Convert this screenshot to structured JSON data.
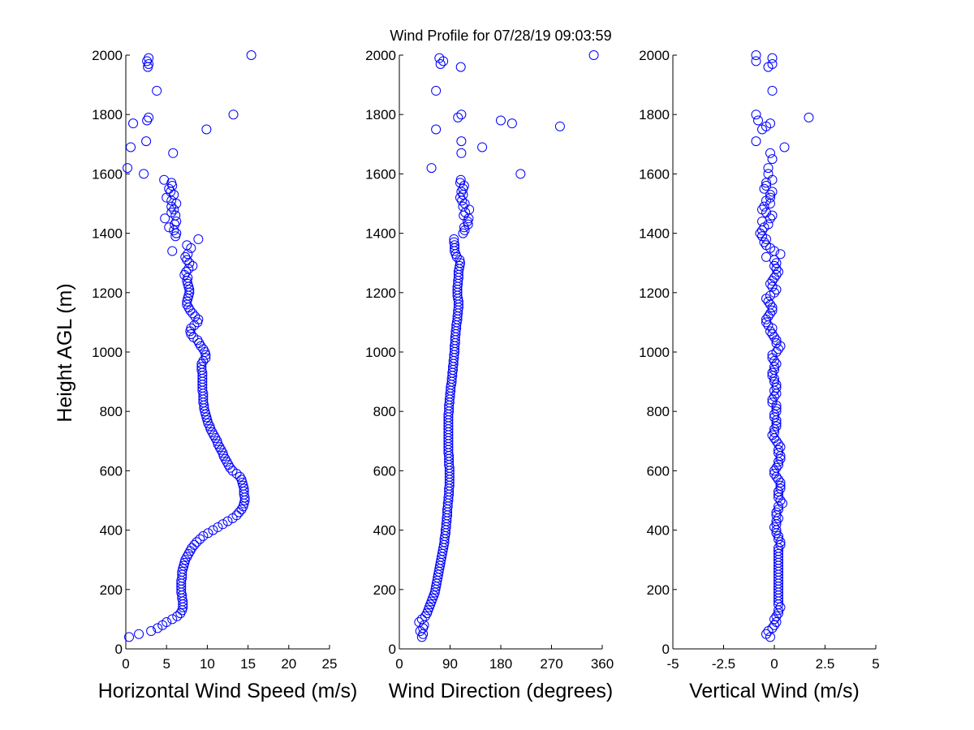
{
  "chart_data": {
    "title": "Wind Profile for  07/28/19 09:03:59",
    "ylabel": "Height AGL (m)",
    "ylim": [
      0,
      2000
    ],
    "yticks": [
      0,
      200,
      400,
      600,
      800,
      1000,
      1200,
      1400,
      1600,
      1800,
      2000
    ],
    "panels": [
      {
        "type": "scatter",
        "xlabel": "Horizontal Wind Speed (m/s)",
        "xlim": [
          0,
          25
        ],
        "xticks": [
          "0",
          "5",
          "10",
          "15",
          "20",
          "25"
        ],
        "xtick_values": [
          0,
          5,
          10,
          15,
          20,
          25
        ],
        "y": [
          40,
          50,
          60,
          70,
          80,
          90,
          100,
          110,
          120,
          130,
          140,
          150,
          160,
          170,
          180,
          190,
          200,
          210,
          220,
          230,
          240,
          250,
          260,
          270,
          280,
          290,
          300,
          310,
          320,
          330,
          340,
          350,
          360,
          370,
          380,
          390,
          400,
          410,
          420,
          430,
          440,
          450,
          460,
          470,
          480,
          490,
          500,
          510,
          520,
          530,
          540,
          550,
          560,
          570,
          580,
          590,
          600,
          610,
          620,
          630,
          640,
          650,
          660,
          670,
          680,
          690,
          700,
          710,
          720,
          730,
          740,
          750,
          760,
          770,
          780,
          790,
          800,
          810,
          820,
          830,
          840,
          850,
          860,
          870,
          880,
          890,
          900,
          910,
          920,
          930,
          940,
          950,
          960,
          970,
          980,
          990,
          1000,
          1010,
          1020,
          1030,
          1040,
          1050,
          1060,
          1070,
          1080,
          1090,
          1100,
          1110,
          1120,
          1130,
          1140,
          1150,
          1160,
          1170,
          1180,
          1190,
          1200,
          1210,
          1220,
          1230,
          1240,
          1250,
          1260,
          1270,
          1280,
          1290,
          1300,
          1310,
          1320,
          1330,
          1340,
          1350,
          1360,
          1380,
          1390,
          1400,
          1410,
          1420,
          1430,
          1440,
          1450,
          1460,
          1470,
          1480,
          1490,
          1500,
          1510,
          1520,
          1530,
          1540,
          1550,
          1560,
          1570,
          1580,
          1600,
          1620,
          1670,
          1690,
          1710,
          1750,
          1770,
          1780,
          1790,
          1800,
          1880,
          1960,
          1970,
          1980,
          1990,
          2000
        ],
        "x": [
          0.4,
          1.6,
          3.1,
          3.9,
          4.5,
          5.0,
          5.7,
          6.3,
          6.7,
          6.9,
          7.0,
          7.0,
          7.0,
          6.9,
          6.9,
          6.8,
          6.8,
          6.8,
          6.8,
          6.8,
          6.9,
          6.9,
          6.9,
          7.0,
          7.1,
          7.2,
          7.3,
          7.5,
          7.7,
          7.9,
          8.1,
          8.4,
          8.7,
          9.1,
          9.5,
          10.1,
          10.7,
          11.3,
          11.9,
          12.5,
          13.1,
          13.6,
          13.9,
          14.2,
          14.4,
          14.5,
          14.6,
          14.6,
          14.5,
          14.5,
          14.5,
          14.4,
          14.3,
          14.2,
          14.0,
          13.6,
          13.1,
          12.8,
          12.6,
          12.4,
          12.2,
          12.0,
          11.9,
          11.7,
          11.5,
          11.3,
          11.2,
          11.0,
          10.8,
          10.6,
          10.4,
          10.3,
          10.1,
          10.0,
          9.9,
          9.8,
          9.7,
          9.6,
          9.6,
          9.5,
          9.5,
          9.5,
          9.5,
          9.4,
          9.4,
          9.4,
          9.4,
          9.4,
          9.4,
          9.4,
          9.3,
          9.3,
          9.3,
          9.5,
          9.8,
          9.8,
          9.7,
          9.5,
          9.2,
          9.0,
          8.8,
          8.3,
          8.0,
          7.9,
          8.0,
          8.4,
          8.8,
          8.9,
          8.5,
          8.2,
          7.9,
          7.7,
          7.5,
          7.5,
          7.6,
          7.7,
          7.8,
          7.8,
          7.7,
          7.6,
          7.5,
          7.6,
          7.2,
          7.4,
          7.7,
          8.2,
          7.8,
          7.5,
          7.3,
          7.6,
          5.7,
          8.0,
          7.5,
          8.9,
          6.1,
          6.2,
          5.9,
          5.3,
          6.0,
          6.2,
          4.8,
          6.1,
          5.6,
          5.9,
          5.6,
          6.2,
          5.6,
          5.0,
          5.9,
          5.5,
          5.3,
          5.7,
          5.6,
          4.7,
          2.2,
          0.2,
          5.8,
          0.6,
          2.5,
          9.9,
          0.9,
          2.6,
          2.8,
          13.2,
          3.8,
          2.7,
          2.8,
          2.6,
          2.8,
          15.4
        ]
      },
      {
        "type": "scatter",
        "xlabel": "Wind Direction (degrees)",
        "xlim": [
          0,
          360
        ],
        "xticks": [
          "0",
          "90",
          "180",
          "270",
          "360"
        ],
        "xtick_values": [
          0,
          90,
          180,
          270,
          360
        ],
        "y": [
          40,
          50,
          60,
          70,
          80,
          90,
          100,
          110,
          120,
          130,
          140,
          150,
          160,
          170,
          180,
          190,
          200,
          210,
          220,
          230,
          240,
          250,
          260,
          270,
          280,
          290,
          300,
          310,
          320,
          330,
          340,
          350,
          360,
          370,
          380,
          390,
          400,
          410,
          420,
          430,
          440,
          450,
          460,
          470,
          480,
          490,
          500,
          510,
          520,
          530,
          540,
          550,
          560,
          570,
          580,
          590,
          600,
          610,
          620,
          630,
          640,
          650,
          660,
          670,
          680,
          690,
          700,
          710,
          720,
          730,
          740,
          750,
          760,
          770,
          780,
          790,
          800,
          810,
          820,
          830,
          840,
          850,
          860,
          870,
          880,
          890,
          900,
          910,
          920,
          930,
          940,
          950,
          960,
          970,
          980,
          990,
          1000,
          1010,
          1020,
          1030,
          1040,
          1050,
          1060,
          1070,
          1080,
          1090,
          1100,
          1110,
          1120,
          1130,
          1140,
          1150,
          1160,
          1170,
          1180,
          1190,
          1200,
          1210,
          1220,
          1230,
          1240,
          1250,
          1260,
          1270,
          1280,
          1290,
          1300,
          1310,
          1320,
          1330,
          1340,
          1350,
          1360,
          1370,
          1380,
          1400,
          1410,
          1420,
          1430,
          1440,
          1450,
          1460,
          1470,
          1480,
          1490,
          1500,
          1510,
          1520,
          1530,
          1540,
          1550,
          1560,
          1570,
          1580,
          1600,
          1620,
          1670,
          1690,
          1710,
          1750,
          1760,
          1770,
          1780,
          1790,
          1800,
          1880,
          1960,
          1970,
          1980,
          1990,
          2000
        ],
        "x": [
          40,
          42,
          37,
          42,
          44,
          35,
          40,
          46,
          49,
          51,
          53,
          55,
          57,
          59,
          61,
          63,
          64,
          65,
          66,
          67,
          68,
          69,
          70,
          71,
          72,
          73,
          74,
          75,
          76,
          77,
          78,
          79,
          80,
          80,
          81,
          82,
          82,
          83,
          83,
          84,
          84,
          85,
          85,
          85,
          86,
          86,
          87,
          87,
          88,
          88,
          88,
          89,
          89,
          89,
          89,
          89,
          89,
          89,
          88,
          88,
          88,
          88,
          87,
          87,
          87,
          87,
          87,
          87,
          87,
          87,
          87,
          87,
          87,
          87,
          87,
          87,
          88,
          88,
          88,
          89,
          89,
          90,
          90,
          91,
          91,
          92,
          93,
          93,
          94,
          94,
          95,
          95,
          96,
          96,
          97,
          97,
          98,
          98,
          98,
          99,
          99,
          99,
          100,
          100,
          101,
          101,
          102,
          103,
          103,
          104,
          104,
          105,
          105,
          105,
          104,
          103,
          103,
          103,
          103,
          104,
          104,
          105,
          105,
          105,
          106,
          107,
          108,
          107,
          102,
          100,
          98,
          98,
          98,
          97,
          97,
          113,
          116,
          115,
          122,
          121,
          123,
          114,
          117,
          124,
          113,
          116,
          111,
          108,
          113,
          110,
          113,
          115,
          108,
          109,
          215,
          57,
          110,
          147,
          110,
          65,
          285,
          200,
          180,
          104,
          110,
          65,
          109,
          73,
          78,
          71,
          345
        ]
      },
      {
        "type": "scatter",
        "xlabel": "Vertical Wind (m/s)",
        "xlim": [
          -5,
          5
        ],
        "xticks": [
          "-5",
          "-2.5",
          "0",
          "2.5",
          "5"
        ],
        "xtick_values": [
          -5,
          -2.5,
          0,
          2.5,
          5
        ],
        "y": [
          40,
          50,
          60,
          70,
          80,
          90,
          100,
          110,
          120,
          130,
          140,
          150,
          160,
          170,
          180,
          190,
          200,
          210,
          220,
          230,
          240,
          250,
          260,
          270,
          280,
          290,
          300,
          310,
          320,
          330,
          340,
          350,
          360,
          370,
          380,
          390,
          400,
          410,
          420,
          430,
          440,
          450,
          460,
          470,
          480,
          490,
          500,
          510,
          520,
          530,
          540,
          550,
          560,
          570,
          580,
          590,
          600,
          610,
          620,
          630,
          640,
          650,
          660,
          670,
          680,
          690,
          700,
          710,
          720,
          730,
          740,
          750,
          760,
          770,
          780,
          790,
          800,
          810,
          820,
          830,
          840,
          850,
          860,
          870,
          880,
          890,
          900,
          910,
          920,
          930,
          940,
          950,
          960,
          970,
          980,
          990,
          1000,
          1010,
          1020,
          1030,
          1040,
          1050,
          1060,
          1070,
          1080,
          1090,
          1100,
          1110,
          1120,
          1130,
          1140,
          1150,
          1160,
          1170,
          1180,
          1190,
          1200,
          1210,
          1220,
          1230,
          1240,
          1250,
          1260,
          1270,
          1280,
          1290,
          1300,
          1310,
          1320,
          1330,
          1340,
          1350,
          1360,
          1370,
          1380,
          1390,
          1400,
          1410,
          1420,
          1430,
          1440,
          1450,
          1460,
          1470,
          1480,
          1490,
          1500,
          1510,
          1520,
          1530,
          1540,
          1550,
          1560,
          1570,
          1580,
          1600,
          1620,
          1650,
          1670,
          1690,
          1710,
          1750,
          1760,
          1770,
          1780,
          1790,
          1800,
          1880,
          1960,
          1970,
          1980,
          1990,
          2000
        ],
        "x": [
          -0.2,
          -0.4,
          -0.3,
          -0.1,
          0.0,
          0.1,
          0.0,
          0.1,
          0.2,
          0.2,
          0.3,
          0.2,
          0.2,
          0.2,
          0.2,
          0.2,
          0.2,
          0.2,
          0.2,
          0.2,
          0.2,
          0.2,
          0.2,
          0.2,
          0.2,
          0.2,
          0.2,
          0.2,
          0.2,
          0.2,
          0.2,
          0.3,
          0.3,
          0.2,
          0.2,
          0.1,
          0.1,
          0.0,
          0.1,
          0.1,
          0.2,
          0.1,
          0.1,
          0.2,
          0.2,
          0.4,
          0.3,
          0.2,
          0.2,
          0.2,
          0.3,
          0.3,
          0.3,
          0.2,
          0.1,
          0.0,
          0.0,
          0.1,
          0.2,
          0.2,
          0.3,
          0.3,
          0.2,
          0.2,
          0.3,
          0.2,
          0.1,
          0.0,
          -0.1,
          0.0,
          0.0,
          0.1,
          0.1,
          0.1,
          0.0,
          0.0,
          0.1,
          0.1,
          0.1,
          -0.1,
          -0.1,
          0.0,
          0.1,
          0.0,
          0.1,
          0.1,
          0.0,
          0.0,
          -0.1,
          -0.1,
          0.0,
          0.0,
          0.1,
          0.0,
          -0.1,
          -0.1,
          0.1,
          0.2,
          0.3,
          0.1,
          0.1,
          0.0,
          -0.1,
          -0.2,
          -0.1,
          -0.3,
          -0.4,
          -0.4,
          -0.3,
          -0.2,
          -0.1,
          -0.1,
          -0.2,
          -0.3,
          -0.4,
          -0.2,
          0.0,
          0.1,
          -0.1,
          -0.2,
          -0.1,
          0.0,
          0.1,
          0.2,
          0.1,
          0.0,
          0.1,
          0.0,
          -0.4,
          0.3,
          0.0,
          -0.2,
          -0.4,
          -0.5,
          -0.4,
          -0.6,
          -0.7,
          -0.6,
          -0.5,
          -0.3,
          -0.6,
          -0.2,
          -0.1,
          -0.4,
          -0.6,
          -0.5,
          -0.2,
          -0.4,
          -0.2,
          -0.2,
          -0.1,
          -0.5,
          -0.4,
          -0.4,
          -0.1,
          -0.3,
          -0.3,
          -0.1,
          -0.2,
          0.5,
          -0.9,
          -0.6,
          -0.4,
          -0.2,
          -0.8,
          1.7,
          -0.9,
          -0.1,
          -0.3,
          -0.1,
          -0.9,
          -0.1,
          -0.9
        ]
      }
    ]
  }
}
